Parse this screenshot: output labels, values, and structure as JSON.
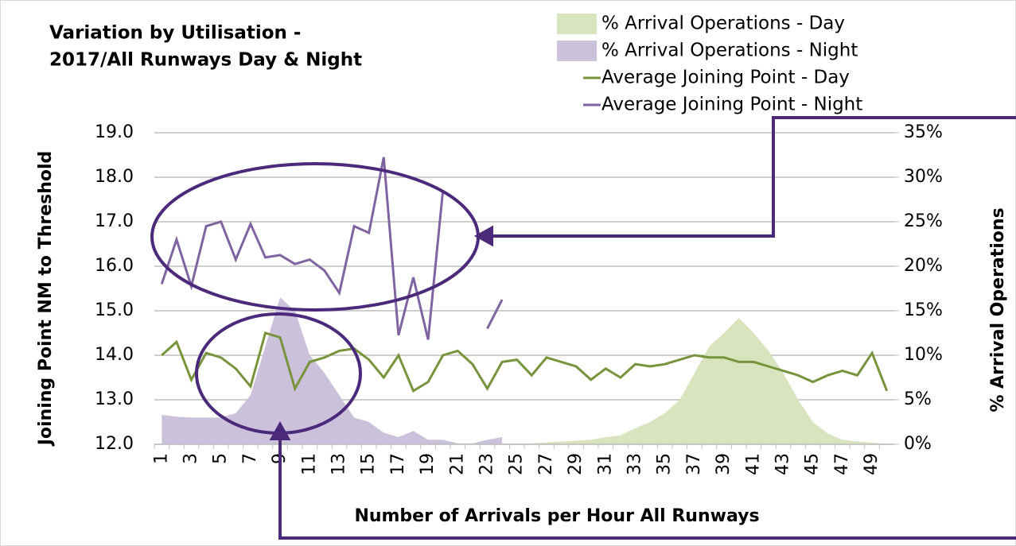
{
  "chart_data": {
    "type": "combo",
    "title": [
      "Variation by Utilisation -",
      "2017/All Runways Day & Night"
    ],
    "x_label": "Number of Arrivals per Hour All Runways",
    "y_label": "Joining Point NM to Threshold",
    "y2_label": "% Arrival Operations",
    "categories": [
      1,
      null,
      3,
      null,
      5,
      null,
      7,
      null,
      9,
      null,
      11,
      null,
      13,
      null,
      15,
      null,
      17,
      null,
      19,
      null,
      21,
      null,
      23,
      null,
      25,
      null,
      27,
      null,
      29,
      null,
      31,
      null,
      33,
      null,
      35,
      null,
      37,
      null,
      39,
      null,
      41,
      null,
      43,
      null,
      45,
      null,
      47,
      null,
      49,
      null
    ],
    "ylim": [
      12,
      19
    ],
    "yticks": [
      {
        "value": 12,
        "label": "12.0"
      },
      {
        "value": 13,
        "label": "13.0"
      },
      {
        "value": 14,
        "label": "14.0"
      },
      {
        "value": 15,
        "label": "15.0"
      },
      {
        "value": 16,
        "label": "16.0"
      },
      {
        "value": 17,
        "label": "17.0"
      },
      {
        "value": 18,
        "label": "18.0"
      },
      {
        "value": 19,
        "label": "19.0"
      }
    ],
    "y2lim": [
      0,
      35
    ],
    "y2ticks": [
      {
        "value": 0,
        "label": "0%"
      },
      {
        "value": 5,
        "label": "5%"
      },
      {
        "value": 10,
        "label": "10%"
      },
      {
        "value": 15,
        "label": "15%"
      },
      {
        "value": 20,
        "label": "20%"
      },
      {
        "value": 25,
        "label": "25%"
      },
      {
        "value": 30,
        "label": "30%"
      },
      {
        "value": 35,
        "label": "35%"
      }
    ],
    "grid": true,
    "legend": "top-right",
    "series": [
      {
        "name": "% Arrival Operations - Day",
        "type": "area",
        "axis": "y2",
        "color": "#d7e4bd",
        "values": [
          0,
          0,
          0,
          0,
          0,
          0,
          0,
          0,
          0,
          0,
          0,
          0,
          0,
          0,
          0,
          0,
          0,
          0,
          0,
          0,
          0,
          0,
          0,
          0.1,
          0.1,
          0.1,
          0.2,
          0.3,
          0.4,
          0.5,
          0.8,
          1.0,
          1.8,
          2.5,
          3.5,
          5,
          8,
          11,
          12.5,
          14.2,
          12.5,
          10.5,
          8,
          5,
          2.5,
          1.2,
          0.5,
          0.3,
          0.2,
          0
        ]
      },
      {
        "name": "% Arrival Operations - Night",
        "type": "area",
        "axis": "y2",
        "color": "#ccc1da",
        "values": [
          3.3,
          3.1,
          3.0,
          3.0,
          3.0,
          3.5,
          5.5,
          11,
          16.5,
          15,
          10,
          8,
          5.5,
          3,
          2.5,
          1.3,
          0.8,
          1.5,
          0.5,
          0.5,
          0.1,
          0.1,
          0.5,
          0.8,
          null,
          null,
          null,
          null,
          null,
          null,
          null,
          null,
          null,
          null,
          null,
          null,
          null,
          null,
          null,
          null,
          null,
          null,
          null,
          null,
          null,
          null,
          null,
          null,
          null,
          null
        ]
      },
      {
        "name": "Average Joining Point - Day",
        "type": "line",
        "axis": "y",
        "color": "#77933c",
        "values": [
          14.0,
          14.3,
          13.45,
          14.05,
          13.95,
          13.7,
          13.3,
          14.5,
          14.4,
          13.25,
          13.85,
          13.95,
          14.1,
          14.15,
          13.9,
          13.5,
          14.0,
          13.2,
          13.4,
          14.0,
          14.1,
          13.8,
          13.25,
          13.85,
          13.9,
          13.55,
          13.95,
          13.85,
          13.75,
          13.45,
          13.7,
          13.5,
          13.8,
          13.75,
          13.8,
          13.9,
          14.0,
          13.95,
          13.95,
          13.85,
          13.85,
          13.75,
          13.65,
          13.55,
          13.4,
          13.55,
          13.65,
          13.55,
          14.05,
          13.2
        ]
      },
      {
        "name": "Average Joining Point - Night",
        "type": "line",
        "axis": "y",
        "color": "#8064a2",
        "values": [
          15.6,
          16.6,
          15.55,
          16.9,
          17.0,
          16.15,
          16.95,
          16.2,
          16.25,
          16.05,
          16.15,
          15.9,
          15.4,
          16.9,
          16.75,
          18.45,
          14.45,
          15.75,
          14.35,
          17.7,
          null,
          null,
          14.6,
          15.25,
          null,
          null,
          null,
          null,
          null,
          null,
          null,
          null,
          null,
          null,
          null,
          null,
          null,
          null,
          null,
          null,
          null,
          null,
          null,
          null,
          null,
          null,
          null,
          null,
          null,
          null
        ]
      }
    ]
  }
}
